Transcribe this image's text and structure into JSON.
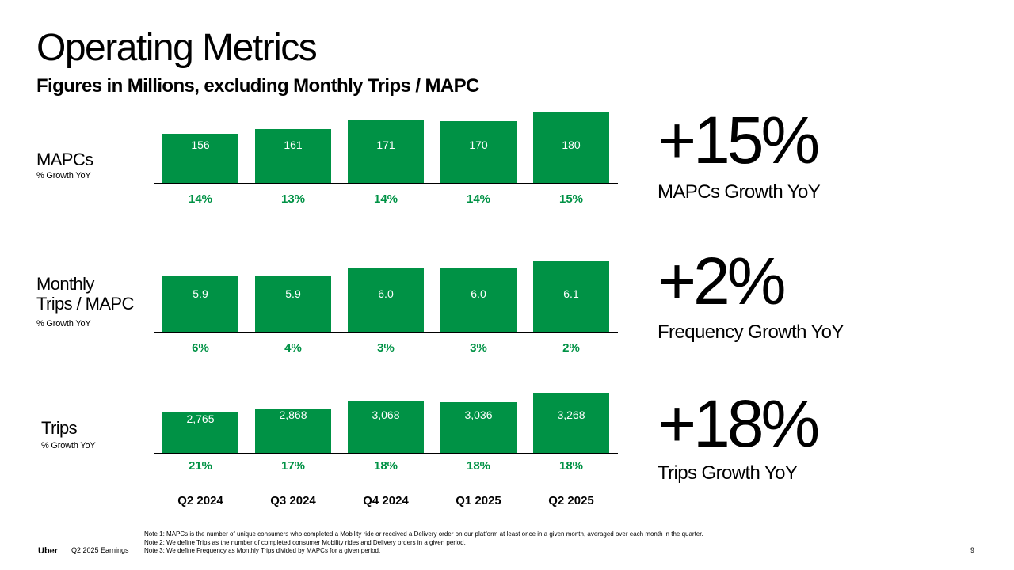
{
  "title": "Operating Metrics",
  "subtitle": "Figures in Millions, excluding Monthly Trips / MAPC",
  "chart_data": {
    "type": "bar",
    "categories": [
      "Q2 2024",
      "Q3 2024",
      "Q4 2024",
      "Q1 2025",
      "Q2 2025"
    ],
    "panels": [
      {
        "name": "MAPCs",
        "sublabel": "% Growth YoY",
        "values": [
          156,
          161,
          171,
          170,
          180
        ],
        "labels": [
          "156",
          "161",
          "171",
          "170",
          "180"
        ],
        "growth": [
          "14%",
          "13%",
          "14%",
          "14%",
          "15%"
        ],
        "headline": "+15%",
        "headline_label": "MAPCs Growth YoY"
      },
      {
        "name_lines": [
          "Monthly",
          "Trips / MAPC"
        ],
        "sublabel": "% Growth YoY",
        "values": [
          5.9,
          5.9,
          6.0,
          6.0,
          6.1
        ],
        "labels": [
          "5.9",
          "5.9",
          "6.0",
          "6.0",
          "6.1"
        ],
        "growth": [
          "6%",
          "4%",
          "3%",
          "3%",
          "2%"
        ],
        "headline": "+2%",
        "headline_label": "Frequency Growth YoY"
      },
      {
        "name": "Trips",
        "sublabel": "% Growth YoY",
        "values": [
          2765,
          2868,
          3068,
          3036,
          3268
        ],
        "labels": [
          "2,765",
          "2,868",
          "3,068",
          "3,036",
          "3,268"
        ],
        "growth": [
          "21%",
          "17%",
          "18%",
          "18%",
          "18%"
        ],
        "headline": "+18%",
        "headline_label": "Trips Growth YoY"
      }
    ],
    "colors": {
      "bar": "#009245",
      "growth_text": "#009245"
    }
  },
  "footer": {
    "brand": "Uber",
    "deck": "Q2 2025 Earnings",
    "notes": [
      "Note 1: MAPCs is the number of unique consumers who completed a Mobility ride or received a Delivery order on our platform at least once in a given month, averaged over each month in the quarter.",
      "Note 2: We define Trips as the number of completed consumer Mobility rides and Delivery orders in a given period.",
      "Note 3: We define Frequency as Monthly Trips divided by MAPCs for a given period."
    ],
    "page": "9"
  }
}
